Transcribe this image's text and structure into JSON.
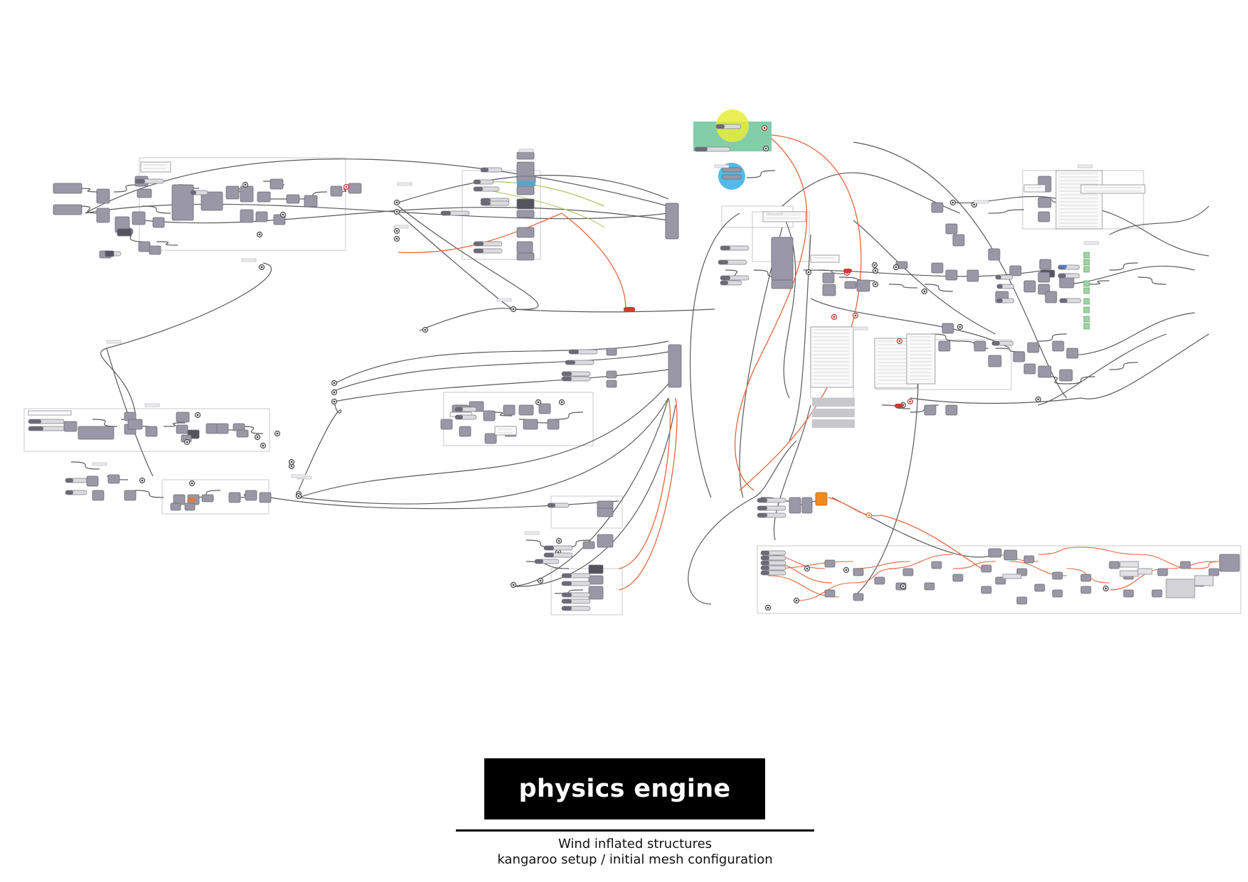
{
  "title": "physics engine",
  "subtitle_line1": "Wind inflated structures",
  "subtitle_line2": "kangaroo setup / initial mesh configuration",
  "colors": {
    "component_fill": "#9a97a6",
    "component_dark": "#55535e",
    "wire": "#5a5a5a",
    "wire_orange": "#e8663c",
    "wire_green": "#a9c95a",
    "highlight_green": "#6cc69a",
    "highlight_yellow": "#e6ec3b",
    "highlight_blue": "#3fb3e6",
    "module_orange": "#f08a1e"
  },
  "icons": [
    "component-node",
    "slider",
    "panel",
    "wire-relay",
    "group-frame"
  ]
}
